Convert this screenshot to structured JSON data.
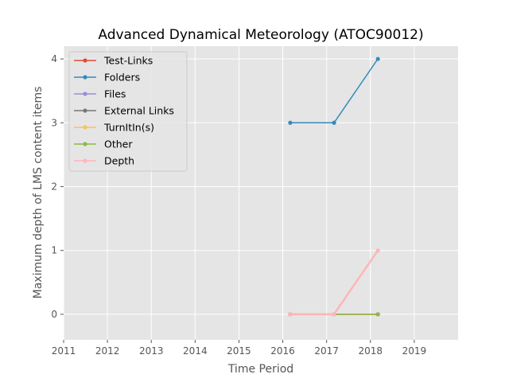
{
  "chart_data": {
    "type": "line",
    "title": "Advanced Dynamical Meteorology (ATOC90012)",
    "xlabel": "Time Period",
    "ylabel": "Maximum depth of LMS content items",
    "xlim": [
      2011,
      2020
    ],
    "ylim": [
      -0.4,
      4.2
    ],
    "xticks": [
      2011,
      2012,
      2013,
      2014,
      2015,
      2016,
      2017,
      2018,
      2019
    ],
    "yticks": [
      0,
      1,
      2,
      3,
      4
    ],
    "grid": true,
    "legend_position": "top-left",
    "x": [
      2016.17,
      2017.17,
      2018.17
    ],
    "series": [
      {
        "name": "Test-Links",
        "color": "#E24A33",
        "values": [
          0,
          0,
          0
        ]
      },
      {
        "name": "Folders",
        "color": "#348ABD",
        "values": [
          3,
          3,
          4
        ]
      },
      {
        "name": "Files",
        "color": "#988ED5",
        "values": [
          0,
          0,
          0
        ]
      },
      {
        "name": "External Links",
        "color": "#777777",
        "values": [
          0,
          0,
          0
        ]
      },
      {
        "name": "TurnItIn(s)",
        "color": "#FBC15E",
        "values": [
          0,
          0,
          0
        ]
      },
      {
        "name": "Other",
        "color": "#8EBA42",
        "values": [
          0,
          0,
          0
        ]
      },
      {
        "name": "Depth",
        "color": "#FFB5B8",
        "values": [
          0,
          0,
          1
        ]
      }
    ]
  }
}
